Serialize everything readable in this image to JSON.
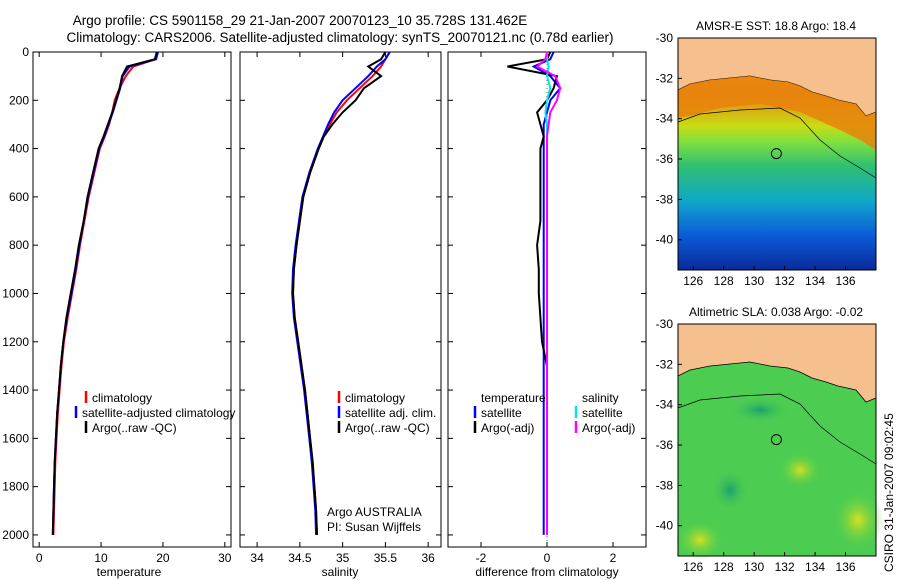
{
  "header": {
    "title_line1": "Argo profile: CS 5901158_29 21-Jan-2007 20070123_10 35.728S 131.462E",
    "title_line2": "Climatology: CARS2006. Satellite-adjusted climatology: synTS_20070121.nc (0.78d earlier)"
  },
  "colors": {
    "climatology": "#ff0000",
    "satellite": "#0000ff",
    "argo": "#000000",
    "sal_satellite": "#00e5ee",
    "sal_argo": "#ff00ff",
    "land": "#f6c08e"
  },
  "chart_data": [
    {
      "type": "line",
      "name": "temperature-panel",
      "xlabel": "temperature",
      "xlim": [
        -1,
        31
      ],
      "ylim": [
        0,
        2050
      ],
      "y_reversed": true,
      "xticks": [
        0,
        10,
        20,
        30
      ],
      "yticks": [
        0,
        200,
        400,
        600,
        800,
        1000,
        1200,
        1400,
        1600,
        1800,
        2000
      ],
      "legend": [
        "climatology",
        "satellite-adjusted climatology",
        "Argo(..raw -QC)"
      ],
      "series": [
        {
          "name": "climatology",
          "color": "#ff0000",
          "x": [
            19.0,
            18.8,
            15.2,
            14.0,
            13.0,
            12.2,
            11.8,
            11.3,
            10.6,
            9.8,
            8.9,
            8.0,
            7.3,
            6.6,
            6.0,
            5.3,
            4.6,
            4.0,
            3.6,
            3.3,
            3.0,
            2.8,
            2.6,
            2.5,
            2.4,
            2.3
          ],
          "y": [
            0,
            30,
            60,
            100,
            150,
            200,
            250,
            300,
            350,
            400,
            500,
            600,
            700,
            800,
            900,
            1000,
            1100,
            1200,
            1300,
            1400,
            1500,
            1600,
            1700,
            1800,
            1900,
            2000
          ]
        },
        {
          "name": "satellite-adjusted climatology",
          "color": "#0000ff",
          "x": [
            19.2,
            18.9,
            14.6,
            13.5,
            13.1,
            12.5,
            11.9,
            11.2,
            10.5,
            9.7,
            8.8,
            7.9,
            7.2,
            6.5,
            5.9,
            5.2,
            4.5,
            3.9,
            3.5,
            3.2,
            2.9,
            2.7,
            2.5,
            2.4,
            2.3,
            2.2
          ],
          "y": [
            0,
            30,
            60,
            100,
            150,
            200,
            250,
            300,
            350,
            400,
            500,
            600,
            700,
            800,
            900,
            1000,
            1100,
            1200,
            1300,
            1400,
            1500,
            1600,
            1700,
            1800,
            1900,
            2000
          ]
        },
        {
          "name": "Argo(..raw -QC)",
          "color": "#000000",
          "x": [
            19.0,
            18.7,
            14.2,
            13.4,
            13.0,
            12.4,
            11.8,
            11.1,
            10.4,
            9.6,
            8.7,
            7.8,
            7.2,
            6.4,
            5.8,
            5.1,
            4.4,
            3.9,
            3.5,
            3.2,
            2.9,
            2.7,
            2.5,
            2.4,
            2.3,
            2.2
          ],
          "y": [
            0,
            30,
            60,
            100,
            150,
            200,
            250,
            300,
            350,
            400,
            500,
            600,
            700,
            800,
            900,
            1000,
            1100,
            1200,
            1300,
            1400,
            1500,
            1600,
            1700,
            1800,
            1900,
            2000
          ]
        }
      ]
    },
    {
      "type": "line",
      "name": "salinity-panel",
      "xlabel": "salinity",
      "xlim": [
        33.8,
        36.15
      ],
      "ylim": [
        0,
        2050
      ],
      "y_reversed": true,
      "xticks": [
        34,
        34.5,
        35,
        35.5,
        36
      ],
      "legend": [
        "climatology",
        "satellite adj. clim.",
        "Argo(..raw -QC)"
      ],
      "annotation": [
        "Argo AUSTRALIA",
        "PI: Susan Wijffels"
      ],
      "series": [
        {
          "name": "climatology",
          "color": "#ff0000",
          "x": [
            35.55,
            35.5,
            35.45,
            35.35,
            35.2,
            35.05,
            34.93,
            34.85,
            34.78,
            34.72,
            34.62,
            34.54,
            34.5,
            34.46,
            34.43,
            34.42,
            34.44,
            34.48,
            34.52,
            34.56,
            34.59,
            34.62,
            34.65,
            34.67,
            34.69,
            34.7
          ],
          "y": [
            0,
            30,
            60,
            100,
            150,
            200,
            250,
            300,
            350,
            400,
            500,
            600,
            700,
            800,
            900,
            1000,
            1100,
            1200,
            1300,
            1400,
            1500,
            1600,
            1700,
            1800,
            1900,
            2000
          ]
        },
        {
          "name": "satellite adj. clim.",
          "color": "#0000ff",
          "x": [
            35.55,
            35.5,
            35.4,
            35.3,
            35.15,
            35.0,
            34.9,
            34.83,
            34.77,
            34.71,
            34.61,
            34.53,
            34.49,
            34.45,
            34.42,
            34.41,
            34.43,
            34.47,
            34.51,
            34.55,
            34.58,
            34.61,
            34.64,
            34.66,
            34.68,
            34.69
          ],
          "y": [
            0,
            30,
            60,
            100,
            150,
            200,
            250,
            300,
            350,
            400,
            500,
            600,
            700,
            800,
            900,
            1000,
            1100,
            1200,
            1300,
            1400,
            1500,
            1600,
            1700,
            1800,
            1900,
            2000
          ]
        },
        {
          "name": "Argo(..raw -QC)",
          "color": "#000000",
          "x": [
            35.5,
            35.45,
            35.3,
            35.45,
            35.25,
            35.15,
            35.0,
            34.88,
            34.78,
            34.72,
            34.62,
            34.54,
            34.5,
            34.46,
            34.43,
            34.42,
            34.44,
            34.48,
            34.52,
            34.56,
            34.59,
            34.62,
            34.65,
            34.67,
            34.69,
            34.7
          ],
          "y": [
            0,
            30,
            60,
            100,
            150,
            200,
            250,
            300,
            350,
            400,
            500,
            600,
            700,
            800,
            900,
            1000,
            1100,
            1200,
            1300,
            1400,
            1500,
            1600,
            1700,
            1800,
            1900,
            2000
          ]
        }
      ]
    },
    {
      "type": "line",
      "name": "difference-panel",
      "xlabel": "difference from climatology",
      "xlim": [
        -3,
        3
      ],
      "ylim": [
        0,
        2050
      ],
      "y_reversed": true,
      "xticks": [
        -2,
        0,
        2
      ],
      "legend_temperature": [
        "temperature",
        "satellite",
        "Argo(-adj)"
      ],
      "legend_salinity": [
        "salinity",
        "satellite",
        "Argo(-adj)"
      ],
      "series": [
        {
          "name": "temperature satellite",
          "color": "#0000ff",
          "x": [
            0.2,
            0.1,
            -0.4,
            0.1,
            0.4,
            0.1,
            0.0,
            -0.1,
            -0.1,
            -0.1,
            -0.1,
            -0.1,
            -0.1,
            -0.1,
            -0.1,
            -0.1,
            -0.1,
            -0.1,
            -0.1,
            -0.1,
            -0.1,
            -0.1,
            -0.1,
            -0.1,
            -0.1,
            -0.1
          ],
          "y": [
            0,
            30,
            60,
            100,
            150,
            200,
            250,
            300,
            350,
            400,
            500,
            600,
            700,
            800,
            900,
            1000,
            1100,
            1200,
            1300,
            1400,
            1500,
            1600,
            1700,
            1800,
            1900,
            2000
          ]
        },
        {
          "name": "temperature Argo(-adj)",
          "color": "#000000",
          "x": [
            0.1,
            0.0,
            -1.2,
            0.3,
            0.2,
            0.0,
            -0.3,
            -0.2,
            -0.1,
            -0.2,
            -0.2,
            -0.2,
            -0.2,
            -0.3,
            -0.25,
            -0.25,
            -0.2,
            -0.15,
            0.0,
            0.0,
            0.0,
            0.0,
            0.0,
            0.0,
            0.0,
            0.0
          ],
          "y": [
            0,
            30,
            60,
            100,
            150,
            200,
            250,
            300,
            350,
            400,
            500,
            600,
            700,
            800,
            900,
            1000,
            1100,
            1200,
            1300,
            1400,
            1500,
            1600,
            1700,
            1800,
            1900,
            2000
          ]
        },
        {
          "name": "salinity satellite",
          "color": "#00e5ee",
          "x": [
            0.0,
            0.0,
            0.05,
            0.0,
            0.1,
            0.0,
            -0.05,
            0.0,
            0.0,
            0.0,
            0.0,
            0.0,
            0.0,
            0.0,
            0.0,
            0.0,
            0.0,
            0.0,
            0.0,
            0.0,
            0.0,
            0.0,
            0.0,
            0.0,
            0.0,
            0.0
          ],
          "y": [
            0,
            30,
            60,
            100,
            150,
            200,
            250,
            300,
            350,
            400,
            500,
            600,
            700,
            800,
            900,
            1000,
            1100,
            1200,
            1300,
            1400,
            1500,
            1600,
            1700,
            1800,
            1900,
            2000
          ]
        },
        {
          "name": "salinity Argo(-adj)",
          "color": "#ff00ff",
          "x": [
            0.0,
            -0.05,
            -0.3,
            0.25,
            0.4,
            0.3,
            0.1,
            0.05,
            0.0,
            0.0,
            0.0,
            0.0,
            0.0,
            0.0,
            0.0,
            0.0,
            0.0,
            0.0,
            0.0,
            0.0,
            0.0,
            0.0,
            0.0,
            0.0,
            0.0,
            0.0
          ],
          "y": [
            0,
            30,
            60,
            100,
            150,
            200,
            250,
            300,
            350,
            400,
            500,
            600,
            700,
            800,
            900,
            1000,
            1100,
            1200,
            1300,
            1400,
            1500,
            1600,
            1700,
            1800,
            1900,
            2000
          ]
        }
      ]
    },
    {
      "type": "heatmap",
      "name": "sst-map",
      "title": "AMSR-E SST: 18.8  Argo: 18.4",
      "xlim": [
        125,
        138
      ],
      "ylim": [
        -41.5,
        -30
      ],
      "xticks": [
        126,
        128,
        130,
        132,
        134,
        136
      ],
      "yticks": [
        -30,
        -32,
        -34,
        -36,
        -38,
        -40
      ],
      "argo_position": {
        "lon": 131.462,
        "lat": -35.728
      }
    },
    {
      "type": "heatmap",
      "name": "sla-map",
      "title": "Altimetric SLA: 0.038  Argo: -0.02",
      "xlim": [
        125,
        138
      ],
      "ylim": [
        -41.5,
        -30
      ],
      "xticks": [
        126,
        128,
        130,
        132,
        134,
        136
      ],
      "yticks": [
        -30,
        -32,
        -34,
        -36,
        -38,
        -40
      ],
      "argo_position": {
        "lon": 131.462,
        "lat": -35.728
      }
    }
  ],
  "footer": {
    "credit": "CSIRO 31-Jan-2007 09:02:45"
  }
}
